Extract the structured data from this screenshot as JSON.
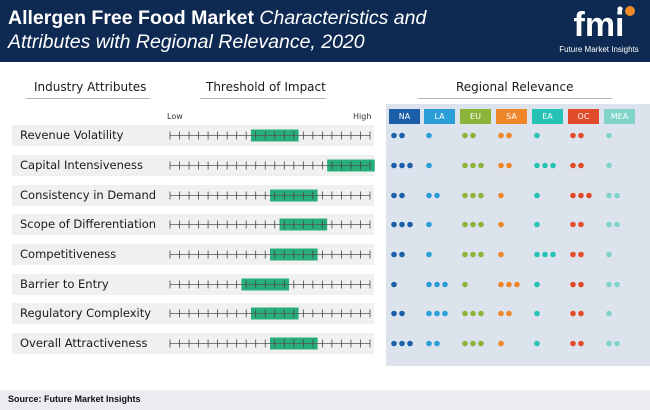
{
  "header": {
    "title_bold": "Allergen Free Food Market",
    "title_italic_1": " Characteristics and",
    "title_italic_2": "Attributes with Regional Relevance, 2020"
  },
  "logo": {
    "mark": "fmi",
    "text": "Future Market Insights"
  },
  "columns": {
    "attributes": "Industry Attributes",
    "threshold": "Threshold of Impact",
    "regional": "Regional Relevance"
  },
  "scale": {
    "low": "Low",
    "high": "High"
  },
  "colors": {
    "header_bg": "#0f2a52",
    "threshold_bar": "#27ae7a",
    "panel_bg": "#dde3ec"
  },
  "chart_data": {
    "type": "table",
    "title": "Allergen Free Food Market Characteristics and Attributes with Regional Relevance, 2020",
    "attributes": [
      "Revenue Volatility",
      "Capital Intensiveness",
      "Consistency in Demand",
      "Scope of Differentiation",
      "Competitiveness",
      "Barrier to Entry",
      "Regulatory Complexity",
      "Overall Attractiveness"
    ],
    "threshold_scale": {
      "ticks": 22,
      "min_label": "Low",
      "max_label": "High"
    },
    "threshold": [
      {
        "start": 10,
        "end": 14
      },
      {
        "start": 18,
        "end": 22
      },
      {
        "start": 12,
        "end": 16
      },
      {
        "start": 13,
        "end": 17
      },
      {
        "start": 12,
        "end": 16
      },
      {
        "start": 9,
        "end": 13
      },
      {
        "start": 10,
        "end": 14
      },
      {
        "start": 12,
        "end": 16
      }
    ],
    "regions": [
      {
        "code": "NA",
        "color": "#1a5fa8",
        "values": [
          2,
          3,
          2,
          3,
          2,
          1,
          2,
          3
        ]
      },
      {
        "code": "LA",
        "color": "#2a9fd6",
        "values": [
          1,
          1,
          2,
          1,
          1,
          3,
          3,
          2
        ]
      },
      {
        "code": "EU",
        "color": "#8cb43a",
        "values": [
          2,
          3,
          3,
          3,
          3,
          1,
          3,
          3
        ]
      },
      {
        "code": "SA",
        "color": "#f0862a",
        "values": [
          2,
          2,
          1,
          1,
          1,
          3,
          2,
          1
        ]
      },
      {
        "code": "EA",
        "color": "#25c2b5",
        "values": [
          1,
          3,
          1,
          1,
          3,
          1,
          1,
          1
        ]
      },
      {
        "code": "OC",
        "color": "#e24b2a",
        "values": [
          2,
          2,
          3,
          2,
          2,
          2,
          2,
          2
        ]
      },
      {
        "code": "MEA",
        "color": "#7fd3c7",
        "values": [
          1,
          1,
          2,
          2,
          1,
          2,
          1,
          2
        ]
      }
    ]
  },
  "footer": {
    "source": "Source: Future Market Insights"
  }
}
